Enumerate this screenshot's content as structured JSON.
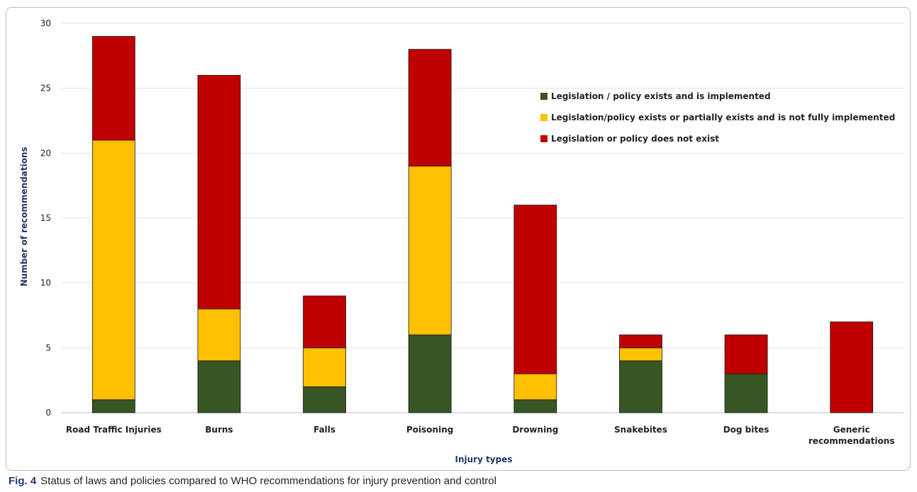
{
  "chart_data": {
    "type": "bar",
    "stacked": true,
    "title": "",
    "xlabel": "Injury types",
    "ylabel": "Number of recommendations",
    "ylim": [
      0,
      30
    ],
    "yticks": [
      0,
      5,
      10,
      15,
      20,
      25,
      30
    ],
    "grid": true,
    "legend_position": "top-right",
    "categories": [
      "Road Traffic Injuries",
      "Burns",
      "Falls",
      "Poisoning",
      "Drowning",
      "Snakebites",
      "Dog bites",
      "Generic recommendations"
    ],
    "series": [
      {
        "name": "Legislation / policy exists and is implemented",
        "color": "#375623",
        "values": [
          1,
          4,
          2,
          6,
          1,
          4,
          3,
          0
        ]
      },
      {
        "name": "Legislation/policy exists or partially exists and is not fully implemented",
        "color": "#ffc000",
        "values": [
          20,
          4,
          3,
          13,
          2,
          1,
          0,
          0
        ]
      },
      {
        "name": "Legislation or policy does not exist",
        "color": "#c00000",
        "values": [
          8,
          18,
          4,
          9,
          13,
          1,
          3,
          7
        ]
      }
    ]
  },
  "caption": {
    "label": "Fig. 4",
    "text": "Status of laws and policies compared to WHO recommendations for injury prevention and control"
  }
}
